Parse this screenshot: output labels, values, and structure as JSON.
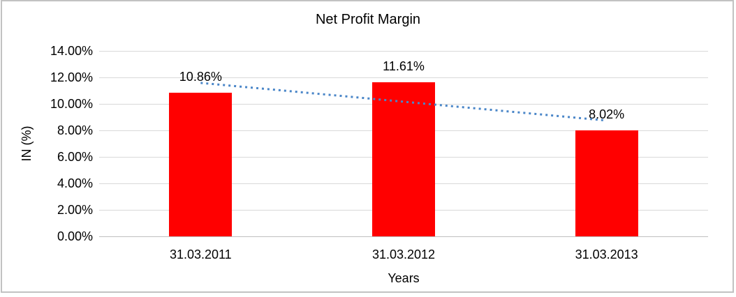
{
  "chart_data": {
    "type": "bar",
    "title": "Net Profit Margin",
    "xlabel": "Years",
    "ylabel": "IN (%)",
    "categories": [
      "31.03.2011",
      "31.03.2012",
      "31.03.2013"
    ],
    "values": [
      10.86,
      11.61,
      8.02
    ],
    "data_labels": [
      "10.86%",
      "11.61%",
      "8.02%"
    ],
    "ylim": [
      0,
      14
    ],
    "ytick_step": 2,
    "ytick_labels": [
      "0.00%",
      "2.00%",
      "4.00%",
      "6.00%",
      "8.00%",
      "10.00%",
      "12.00%",
      "14.00%"
    ],
    "grid": true,
    "legend": "none",
    "bar_color": "#FF0000",
    "trendline": {
      "type": "linear",
      "style": "dotted",
      "color": "#4A86C8"
    },
    "colors": {
      "gridline": "#D9D9D9",
      "axis_line": "#BFBFBF",
      "text": "#000000",
      "frame_border": "#C2C2C2",
      "background": "#FFFFFF"
    }
  }
}
